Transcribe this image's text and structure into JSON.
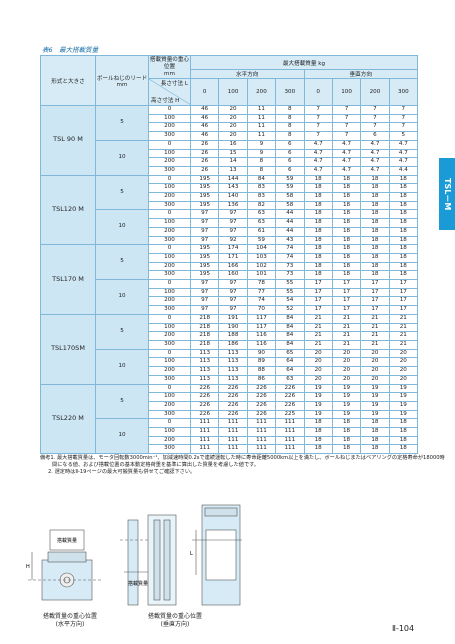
{
  "header": {
    "title": "表6　最大搭載質量"
  },
  "side_tab": "TSL－M",
  "table": {
    "col_model": "形式と大きさ",
    "col_lead": "ボールねじのリード mm",
    "col_position": "搭載質量の重心位置",
    "col_position_unit": "mm",
    "col_max": "最大搭載質量 kg",
    "horizontal": "水平方向",
    "vertical": "垂直方向",
    "length_label": "長さ寸法 L",
    "height_label": "高さ寸法 H",
    "l_values": [
      0,
      100,
      200,
      300,
      0,
      100,
      200,
      300
    ],
    "groups": [
      {
        "model": "TSL 90 M",
        "leads": [
          {
            "lead": 5,
            "rows": [
              {
                "h": 0,
                "values": [
                  46,
                  20,
                  11,
                  8,
                  7,
                  7,
                  7,
                  7
                ]
              },
              {
                "h": 100,
                "values": [
                  46,
                  20,
                  11,
                  8,
                  7,
                  7,
                  7,
                  7
                ]
              },
              {
                "h": 200,
                "values": [
                  46,
                  20,
                  11,
                  8,
                  7,
                  7,
                  7,
                  7
                ]
              },
              {
                "h": 300,
                "values": [
                  46,
                  20,
                  11,
                  8,
                  7,
                  7,
                  6,
                  5
                ]
              }
            ]
          },
          {
            "lead": 10,
            "rows": [
              {
                "h": 0,
                "values": [
                  26,
                  16,
                  9,
                  6,
                  4.7,
                  4.7,
                  4.7,
                  4.7
                ]
              },
              {
                "h": 100,
                "values": [
                  26,
                  15,
                  9,
                  6,
                  4.7,
                  4.7,
                  4.7,
                  4.7
                ]
              },
              {
                "h": 200,
                "values": [
                  26,
                  14,
                  8,
                  6,
                  4.7,
                  4.7,
                  4.7,
                  4.7
                ]
              },
              {
                "h": 300,
                "values": [
                  26,
                  13,
                  8,
                  6,
                  4.7,
                  4.7,
                  4.7,
                  4.4
                ]
              }
            ]
          }
        ]
      },
      {
        "model": "TSL120 M",
        "leads": [
          {
            "lead": 5,
            "rows": [
              {
                "h": 0,
                "values": [
                  195,
                  144,
                  84,
                  59,
                  18,
                  18,
                  18,
                  18
                ]
              },
              {
                "h": 100,
                "values": [
                  195,
                  143,
                  83,
                  59,
                  18,
                  18,
                  18,
                  18
                ]
              },
              {
                "h": 200,
                "values": [
                  195,
                  140,
                  83,
                  58,
                  18,
                  18,
                  18,
                  18
                ]
              },
              {
                "h": 300,
                "values": [
                  195,
                  136,
                  82,
                  58,
                  18,
                  18,
                  18,
                  18
                ]
              }
            ]
          },
          {
            "lead": 10,
            "rows": [
              {
                "h": 0,
                "values": [
                  97,
                  97,
                  63,
                  44,
                  18,
                  18,
                  18,
                  18
                ]
              },
              {
                "h": 100,
                "values": [
                  97,
                  97,
                  63,
                  44,
                  18,
                  18,
                  18,
                  18
                ]
              },
              {
                "h": 200,
                "values": [
                  97,
                  97,
                  61,
                  44,
                  18,
                  18,
                  18,
                  18
                ]
              },
              {
                "h": 300,
                "values": [
                  97,
                  92,
                  59,
                  43,
                  18,
                  18,
                  18,
                  18
                ]
              }
            ]
          }
        ]
      },
      {
        "model": "TSL170 M",
        "leads": [
          {
            "lead": 5,
            "rows": [
              {
                "h": 0,
                "values": [
                  195,
                  174,
                  104,
                  74,
                  18,
                  18,
                  18,
                  18
                ]
              },
              {
                "h": 100,
                "values": [
                  195,
                  171,
                  103,
                  74,
                  18,
                  18,
                  18,
                  18
                ]
              },
              {
                "h": 200,
                "values": [
                  195,
                  166,
                  102,
                  73,
                  18,
                  18,
                  18,
                  18
                ]
              },
              {
                "h": 300,
                "values": [
                  195,
                  160,
                  101,
                  73,
                  18,
                  18,
                  18,
                  18
                ]
              }
            ]
          },
          {
            "lead": 10,
            "rows": [
              {
                "h": 0,
                "values": [
                  97,
                  97,
                  78,
                  55,
                  17,
                  17,
                  17,
                  17
                ]
              },
              {
                "h": 100,
                "values": [
                  97,
                  97,
                  77,
                  55,
                  17,
                  17,
                  17,
                  17
                ]
              },
              {
                "h": 200,
                "values": [
                  97,
                  97,
                  74,
                  54,
                  17,
                  17,
                  17,
                  17
                ]
              },
              {
                "h": 300,
                "values": [
                  97,
                  97,
                  70,
                  52,
                  17,
                  17,
                  17,
                  17
                ]
              }
            ]
          }
        ]
      },
      {
        "model": "TSL170SM",
        "leads": [
          {
            "lead": 5,
            "rows": [
              {
                "h": 0,
                "values": [
                  218,
                  191,
                  117,
                  84,
                  21,
                  21,
                  21,
                  21
                ]
              },
              {
                "h": 100,
                "values": [
                  218,
                  190,
                  117,
                  84,
                  21,
                  21,
                  21,
                  21
                ]
              },
              {
                "h": 200,
                "values": [
                  218,
                  188,
                  116,
                  84,
                  21,
                  21,
                  21,
                  21
                ]
              },
              {
                "h": 300,
                "values": [
                  218,
                  186,
                  116,
                  84,
                  21,
                  21,
                  21,
                  21
                ]
              }
            ]
          },
          {
            "lead": 10,
            "rows": [
              {
                "h": 0,
                "values": [
                  113,
                  113,
                  90,
                  65,
                  20,
                  20,
                  20,
                  20
                ]
              },
              {
                "h": 100,
                "values": [
                  113,
                  113,
                  89,
                  64,
                  20,
                  20,
                  20,
                  20
                ]
              },
              {
                "h": 200,
                "values": [
                  113,
                  113,
                  88,
                  64,
                  20,
                  20,
                  20,
                  20
                ]
              },
              {
                "h": 300,
                "values": [
                  113,
                  113,
                  86,
                  63,
                  20,
                  20,
                  20,
                  20
                ]
              }
            ]
          }
        ]
      },
      {
        "model": "TSL220 M",
        "leads": [
          {
            "lead": 5,
            "rows": [
              {
                "h": 0,
                "values": [
                  226,
                  226,
                  226,
                  226,
                  19,
                  19,
                  19,
                  19
                ]
              },
              {
                "h": 100,
                "values": [
                  226,
                  226,
                  226,
                  226,
                  19,
                  19,
                  19,
                  19
                ]
              },
              {
                "h": 200,
                "values": [
                  226,
                  226,
                  226,
                  226,
                  19,
                  19,
                  19,
                  19
                ]
              },
              {
                "h": 300,
                "values": [
                  226,
                  226,
                  226,
                  225,
                  19,
                  19,
                  19,
                  19
                ]
              }
            ]
          },
          {
            "lead": 10,
            "rows": [
              {
                "h": 0,
                "values": [
                  111,
                  111,
                  111,
                  111,
                  18,
                  18,
                  18,
                  18
                ]
              },
              {
                "h": 100,
                "values": [
                  111,
                  111,
                  111,
                  111,
                  18,
                  18,
                  18,
                  18
                ]
              },
              {
                "h": 200,
                "values": [
                  111,
                  111,
                  111,
                  111,
                  18,
                  18,
                  18,
                  18
                ]
              },
              {
                "h": 300,
                "values": [
                  111,
                  111,
                  111,
                  111,
                  18,
                  18,
                  18,
                  18
                ]
              }
            ]
          }
        ]
      }
    ]
  },
  "notes": [
    "備考1. 最大搭載質量は、モータ回転数3000min⁻¹、加減速時間0.2sで連続運転した時に寿命距離5000km以上を満たし、ボールねじまたはベアリングの定格寿命が18000時",
    "間になる値、および搭載位置の基本動定格荷重を基準に算出した質量を考慮した値です。",
    "2. 選定時はⅡ-19ページの最大可搬質量も併せてご確認下さい。"
  ],
  "figures": {
    "load_label": "搭載質量",
    "h_label": "H",
    "l_label": "L",
    "captions": [
      {
        "title": "搭載質量の重心位置",
        "sub": "(水平方向)"
      },
      {
        "title": "搭載質量の重心位置",
        "sub": "(垂直方向)"
      }
    ]
  },
  "page_number": "Ⅱ-104"
}
